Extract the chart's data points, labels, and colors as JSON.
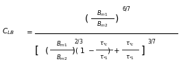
{
  "background_color": "#ffffff",
  "text_color": "#000000",
  "figsize": [
    2.64,
    0.97
  ],
  "dpi": 100,
  "fontsize_main": 7.5,
  "fontsize_small": 6.0,
  "fontsize_super": 5.5
}
